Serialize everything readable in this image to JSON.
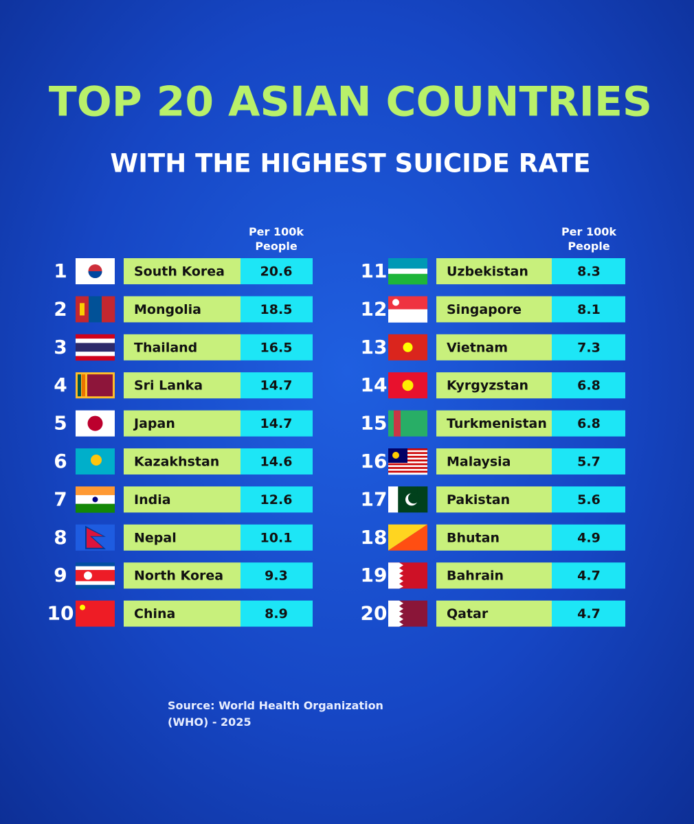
{
  "header": {
    "title": "TOP 20 ASIAN COUNTRIES",
    "subtitle": "WITH THE HIGHEST SUICIDE RATE"
  },
  "table": {
    "column_headers": [
      "Per 100k People",
      "Per 100k People"
    ],
    "rows": [
      [
        "1",
        "South Korea",
        "20.6"
      ],
      [
        "2",
        "Mongolia",
        "18.5"
      ],
      [
        "3",
        "Thailand",
        "16.5"
      ],
      [
        "4",
        "Sri Lanka",
        "14.7"
      ],
      [
        "5",
        "Japan",
        "14.7"
      ],
      [
        "6",
        "Kazakhstan",
        "14.6"
      ],
      [
        "7",
        "India",
        "12.6"
      ],
      [
        "8",
        "Nepal",
        "10.1"
      ],
      [
        "9",
        "North Korea",
        "9.3"
      ],
      [
        "10",
        "China",
        "8.9"
      ],
      [
        "11",
        "Uzbekistan",
        "8.3"
      ],
      [
        "12",
        "Singapore",
        "8.1"
      ],
      [
        "13",
        "Vietnam",
        "7.3"
      ],
      [
        "14",
        "Kyrgyzstan",
        "6.8"
      ],
      [
        "15",
        "Turkmenistan",
        "6.8"
      ],
      [
        "16",
        "Malaysia",
        "5.7"
      ],
      [
        "17",
        "Pakistan",
        "5.6"
      ],
      [
        "18",
        "Bhutan",
        "4.9"
      ],
      [
        "19",
        "Bahrain",
        "4.7"
      ],
      [
        "20",
        "Qatar",
        "4.7"
      ]
    ]
  },
  "footer": {
    "source": "Source: World Health Organization (WHO) - 2025"
  }
}
